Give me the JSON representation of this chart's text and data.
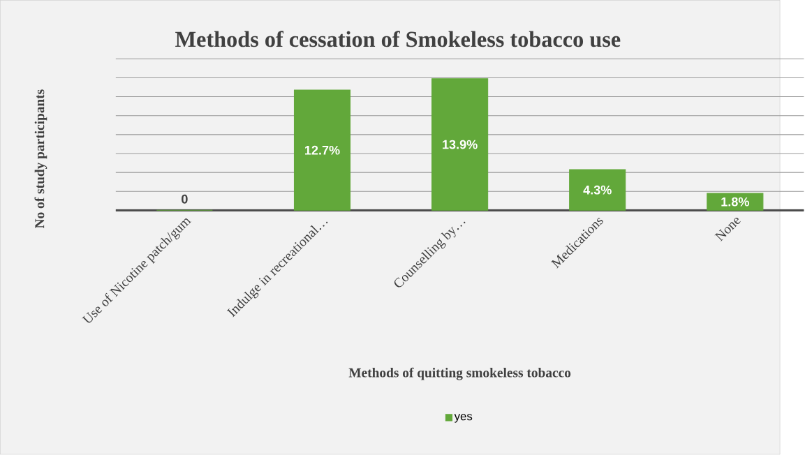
{
  "chart_data": {
    "type": "bar",
    "title": "Methods of cessation of Smokeless tobacco use",
    "xlabel": "Methods of quitting smokeless tobacco",
    "ylabel": "No of study participants",
    "categories": [
      "Use of Nicotine patch/gum",
      "Indulge in recreational…",
      "Counselling by…",
      "Medications",
      "None"
    ],
    "series": [
      {
        "name": "yes",
        "color": "#62a83a",
        "values": [
          0,
          12.7,
          13.9,
          4.3,
          1.8
        ],
        "value_labels": [
          "0",
          "12.7%",
          "13.9%",
          "4.3%",
          "1.8%"
        ]
      }
    ],
    "ylim": [
      0,
      16
    ],
    "yticks": [
      {
        "value": 0,
        "label": null
      },
      {
        "value": 2,
        "label": null
      },
      {
        "value": 4,
        "label": null
      },
      {
        "value": 6,
        "label": null
      },
      {
        "value": 8,
        "label": null
      },
      {
        "value": 10,
        "label": null
      },
      {
        "value": 12,
        "label": null
      },
      {
        "value": 14,
        "label": null
      },
      {
        "value": 16,
        "label": null
      }
    ],
    "grid": "y",
    "legend": "bottom",
    "tick_labels": "x"
  }
}
